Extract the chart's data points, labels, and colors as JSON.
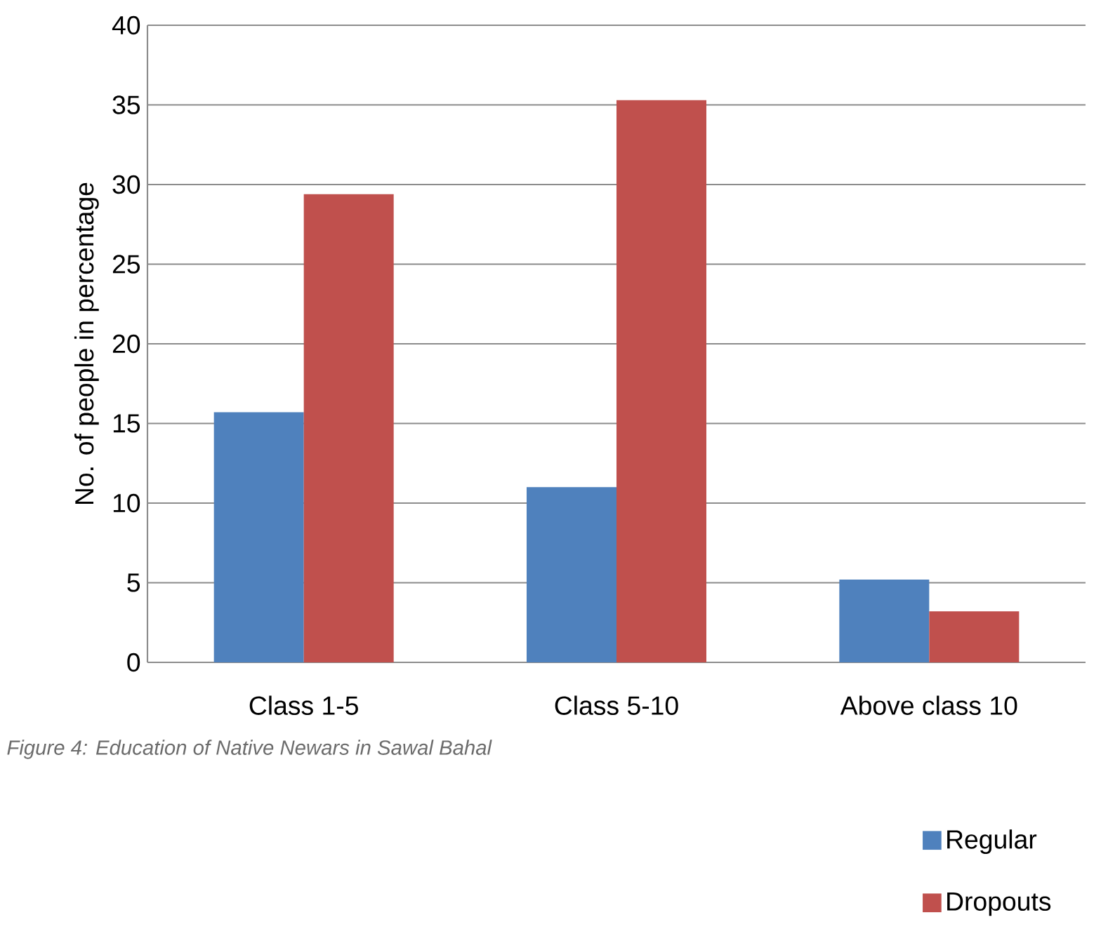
{
  "chart_data": {
    "type": "bar",
    "ylabel": "No. of people in percentage",
    "categories": [
      "Class 1-5",
      "Class 5-10",
      "Above class 10"
    ],
    "series": [
      {
        "name": "Regular",
        "color": "#4f81bd",
        "values": [
          15.7,
          11.0,
          5.2
        ]
      },
      {
        "name": "Dropouts",
        "color": "#c0504d",
        "values": [
          29.4,
          35.3,
          3.2
        ]
      }
    ],
    "ylim": [
      0,
      40
    ],
    "yticks": [
      0,
      5,
      10,
      15,
      20,
      25,
      30,
      35,
      40
    ],
    "grid": "y",
    "legend": "bottom right",
    "annotations": [
      "Figure 4: Education of Native Newars in Sawal Bahal"
    ]
  }
}
